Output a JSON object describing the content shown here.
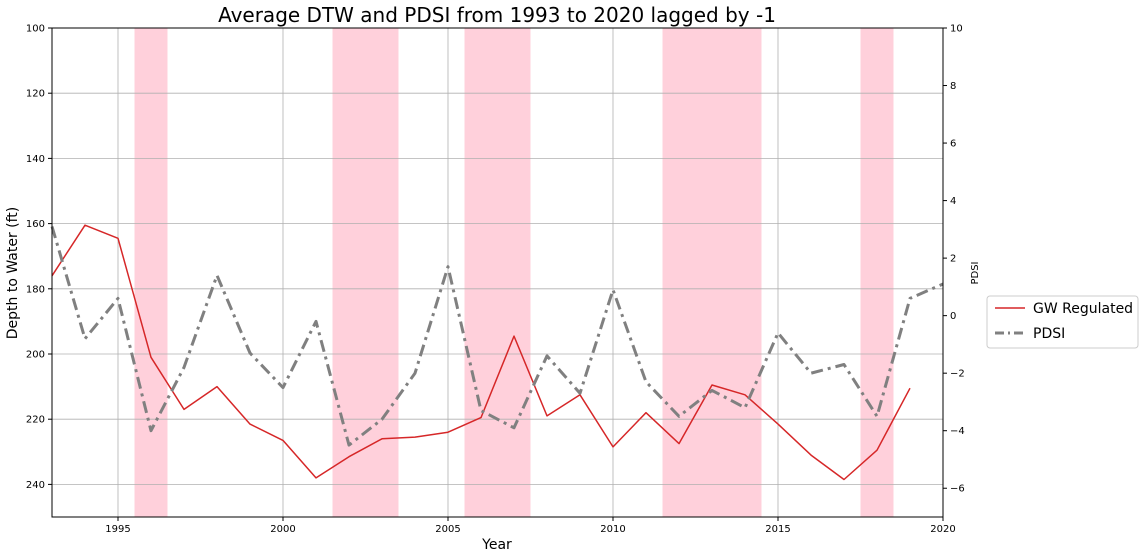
{
  "chart_data": {
    "type": "line",
    "title": "Average DTW and PDSI from 1993 to 2020 lagged by -1",
    "xlabel": "Year",
    "ylabel_left": "Depth to Water (ft)",
    "ylabel_right": "PDSI",
    "xlim": [
      1993,
      2020
    ],
    "ylim_left": [
      250,
      100
    ],
    "ylim_left_inverted": true,
    "ylim_right": [
      -7,
      10
    ],
    "x_ticks": [
      1995,
      2000,
      2005,
      2010,
      2015,
      2020
    ],
    "y_left_ticks": [
      100,
      120,
      140,
      160,
      180,
      200,
      220,
      240
    ],
    "y_right_ticks": [
      -6,
      -4,
      -2,
      0,
      2,
      4,
      6,
      8,
      10
    ],
    "grid": true,
    "legend_position": "outside-right",
    "drought_periods": [
      [
        1995.5,
        1996.5
      ],
      [
        2001.5,
        2003.5
      ],
      [
        2005.5,
        2007.5
      ],
      [
        2011.5,
        2014.5
      ],
      [
        2017.5,
        2018.5
      ]
    ],
    "drought_color": "#ffd0db",
    "series": [
      {
        "name": "GW Regulated",
        "axis": "left",
        "color": "#d62728",
        "style": "solid",
        "x": [
          1993,
          1994,
          1995,
          1996,
          1997,
          1998,
          1999,
          2000,
          2001,
          2002,
          2003,
          2004,
          2005,
          2006,
          2007,
          2008,
          2009,
          2010,
          2011,
          2012,
          2013,
          2014,
          2015,
          2016,
          2017,
          2018,
          2019
        ],
        "values": [
          176,
          160.5,
          164.5,
          201,
          217,
          210,
          221.5,
          226.5,
          238,
          231.5,
          226,
          225.5,
          224,
          219.5,
          194.5,
          219,
          212.5,
          228.5,
          218,
          227.5,
          209.5,
          212.5,
          221.5,
          231,
          238.5,
          229.5,
          210.5
        ]
      },
      {
        "name": "PDSI",
        "axis": "right",
        "color": "#808080",
        "style": "dashdot",
        "x": [
          1993,
          1994,
          1995,
          1996,
          1997,
          1998,
          1999,
          2000,
          2001,
          2002,
          2003,
          2004,
          2005,
          2006,
          2007,
          2008,
          2009,
          2010,
          2011,
          2012,
          2013,
          2014,
          2015,
          2016,
          2017,
          2018,
          2019,
          2020
        ],
        "values": [
          3.1,
          -0.8,
          0.6,
          -4.0,
          -1.8,
          1.4,
          -1.3,
          -2.5,
          -0.2,
          -4.5,
          -3.6,
          -2.0,
          1.7,
          -3.3,
          -3.9,
          -1.4,
          -2.7,
          0.9,
          -2.3,
          -3.5,
          -2.6,
          -3.2,
          -0.6,
          -2.0,
          -1.7,
          -3.5,
          0.6,
          1.1
        ]
      }
    ]
  }
}
